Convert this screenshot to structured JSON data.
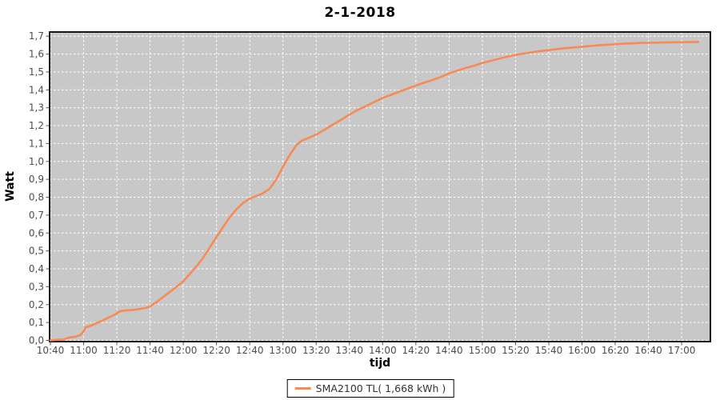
{
  "accent_color": "#f88a55",
  "plot_background": "#c8c8c8",
  "grid_color": "#ffffff",
  "chart_data": {
    "type": "line",
    "title": "2-1-2018",
    "xlabel": "tijd",
    "ylabel": "Watt",
    "grid": true,
    "legend_position": "bottom-center",
    "plot_bg": "#c8c8c8",
    "grid_color": "#ffffff",
    "ylim": [
      0.0,
      1.72
    ],
    "xlim": [
      "10:39",
      "17:17"
    ],
    "x_ticks": [
      "10:40",
      "11:00",
      "11:20",
      "11:40",
      "12:00",
      "12:20",
      "12:40",
      "13:00",
      "13:20",
      "13:40",
      "14:00",
      "14:20",
      "14:40",
      "15:00",
      "15:20",
      "15:40",
      "16:00",
      "16:20",
      "16:40",
      "17:00"
    ],
    "y_tick_labels": [
      "0,0",
      "0,1",
      "0,2",
      "0,3",
      "0,4",
      "0,5",
      "0,6",
      "0,7",
      "0,8",
      "0,9",
      "1,0",
      "1,1",
      "1,2",
      "1,3",
      "1,4",
      "1,5",
      "1,6",
      "1,7"
    ],
    "y_tick_step": 0.1,
    "series": [
      {
        "name": "SMA2100 TL( 1,668 kWh )",
        "color": "#f88a55",
        "points": [
          [
            "10:40",
            0.0
          ],
          [
            "10:44",
            0.003
          ],
          [
            "10:48",
            0.005
          ],
          [
            "10:51",
            0.015
          ],
          [
            "10:55",
            0.02
          ],
          [
            "10:58",
            0.03
          ],
          [
            "11:00",
            0.05
          ],
          [
            "11:01",
            0.072
          ],
          [
            "11:05",
            0.085
          ],
          [
            "11:10",
            0.105
          ],
          [
            "11:15",
            0.128
          ],
          [
            "11:19",
            0.145
          ],
          [
            "11:22",
            0.163
          ],
          [
            "11:26",
            0.168
          ],
          [
            "11:30",
            0.17
          ],
          [
            "11:34",
            0.176
          ],
          [
            "11:38",
            0.183
          ],
          [
            "11:40",
            0.19
          ],
          [
            "11:44",
            0.215
          ],
          [
            "11:48",
            0.243
          ],
          [
            "11:52",
            0.272
          ],
          [
            "11:56",
            0.3
          ],
          [
            "12:00",
            0.33
          ],
          [
            "12:04",
            0.372
          ],
          [
            "12:08",
            0.415
          ],
          [
            "12:12",
            0.462
          ],
          [
            "12:16",
            0.52
          ],
          [
            "12:20",
            0.578
          ],
          [
            "12:24",
            0.635
          ],
          [
            "12:28",
            0.688
          ],
          [
            "12:32",
            0.733
          ],
          [
            "12:36",
            0.768
          ],
          [
            "12:40",
            0.792
          ],
          [
            "12:44",
            0.808
          ],
          [
            "12:48",
            0.822
          ],
          [
            "12:52",
            0.848
          ],
          [
            "12:56",
            0.9
          ],
          [
            "13:00",
            0.97
          ],
          [
            "13:04",
            1.035
          ],
          [
            "13:08",
            1.09
          ],
          [
            "13:11",
            1.115
          ],
          [
            "13:15",
            1.13
          ],
          [
            "13:20",
            1.15
          ],
          [
            "13:25",
            1.177
          ],
          [
            "13:30",
            1.205
          ],
          [
            "13:35",
            1.233
          ],
          [
            "13:40",
            1.262
          ],
          [
            "13:45",
            1.288
          ],
          [
            "13:50",
            1.31
          ],
          [
            "13:55",
            1.332
          ],
          [
            "14:00",
            1.355
          ],
          [
            "14:05",
            1.372
          ],
          [
            "14:10",
            1.39
          ],
          [
            "14:15",
            1.407
          ],
          [
            "14:20",
            1.424
          ],
          [
            "14:25",
            1.44
          ],
          [
            "14:30",
            1.455
          ],
          [
            "14:35",
            1.472
          ],
          [
            "14:40",
            1.492
          ],
          [
            "14:45",
            1.508
          ],
          [
            "14:50",
            1.522
          ],
          [
            "14:55",
            1.535
          ],
          [
            "15:00",
            1.55
          ],
          [
            "15:05",
            1.562
          ],
          [
            "15:10",
            1.574
          ],
          [
            "15:15",
            1.585
          ],
          [
            "15:20",
            1.595
          ],
          [
            "15:25",
            1.603
          ],
          [
            "15:30",
            1.61
          ],
          [
            "15:35",
            1.617
          ],
          [
            "15:40",
            1.622
          ],
          [
            "15:45",
            1.628
          ],
          [
            "15:50",
            1.633
          ],
          [
            "15:55",
            1.637
          ],
          [
            "16:00",
            1.641
          ],
          [
            "16:05",
            1.645
          ],
          [
            "16:10",
            1.649
          ],
          [
            "16:15",
            1.652
          ],
          [
            "16:20",
            1.655
          ],
          [
            "16:25",
            1.658
          ],
          [
            "16:30",
            1.66
          ],
          [
            "16:35",
            1.662
          ],
          [
            "16:40",
            1.663
          ],
          [
            "16:45",
            1.664
          ],
          [
            "16:50",
            1.665
          ],
          [
            "16:55",
            1.666
          ],
          [
            "17:00",
            1.666
          ],
          [
            "17:05",
            1.667
          ],
          [
            "17:10",
            1.668
          ]
        ]
      }
    ],
    "legend": [
      "SMA2100 TL( 1,668 kWh )"
    ]
  }
}
